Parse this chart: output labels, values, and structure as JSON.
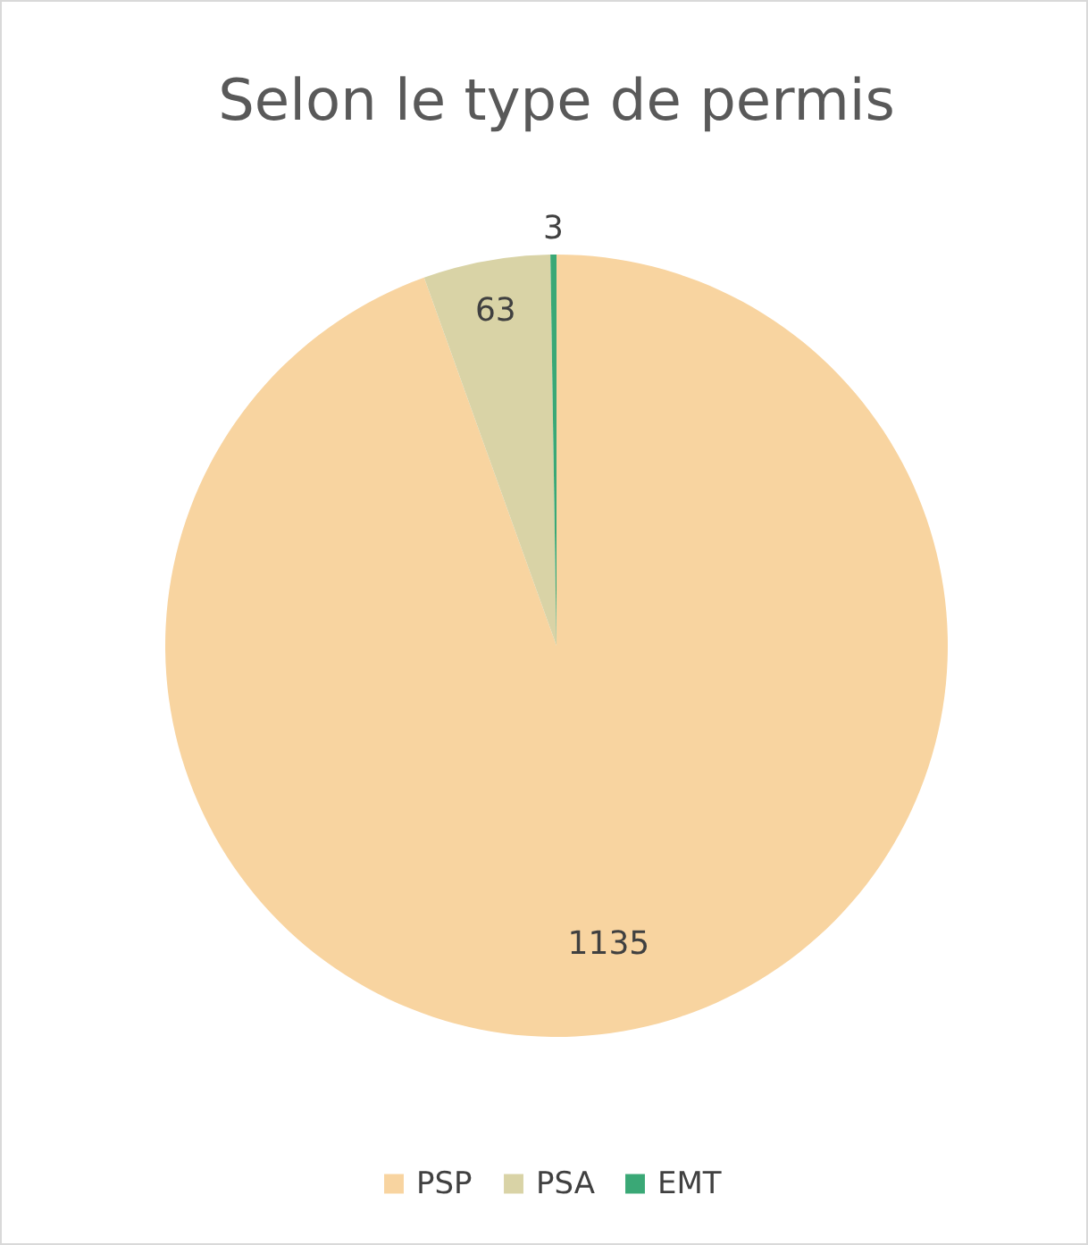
{
  "chart_data": {
    "type": "pie",
    "title": "Selon le type de permis",
    "categories": [
      "PSP",
      "PSA",
      "EMT"
    ],
    "values": [
      1135,
      63,
      3
    ],
    "colors": [
      "#f8d4a0",
      "#d9d3a6",
      "#3aa876"
    ],
    "data_labels": true,
    "legend": "bottom"
  }
}
